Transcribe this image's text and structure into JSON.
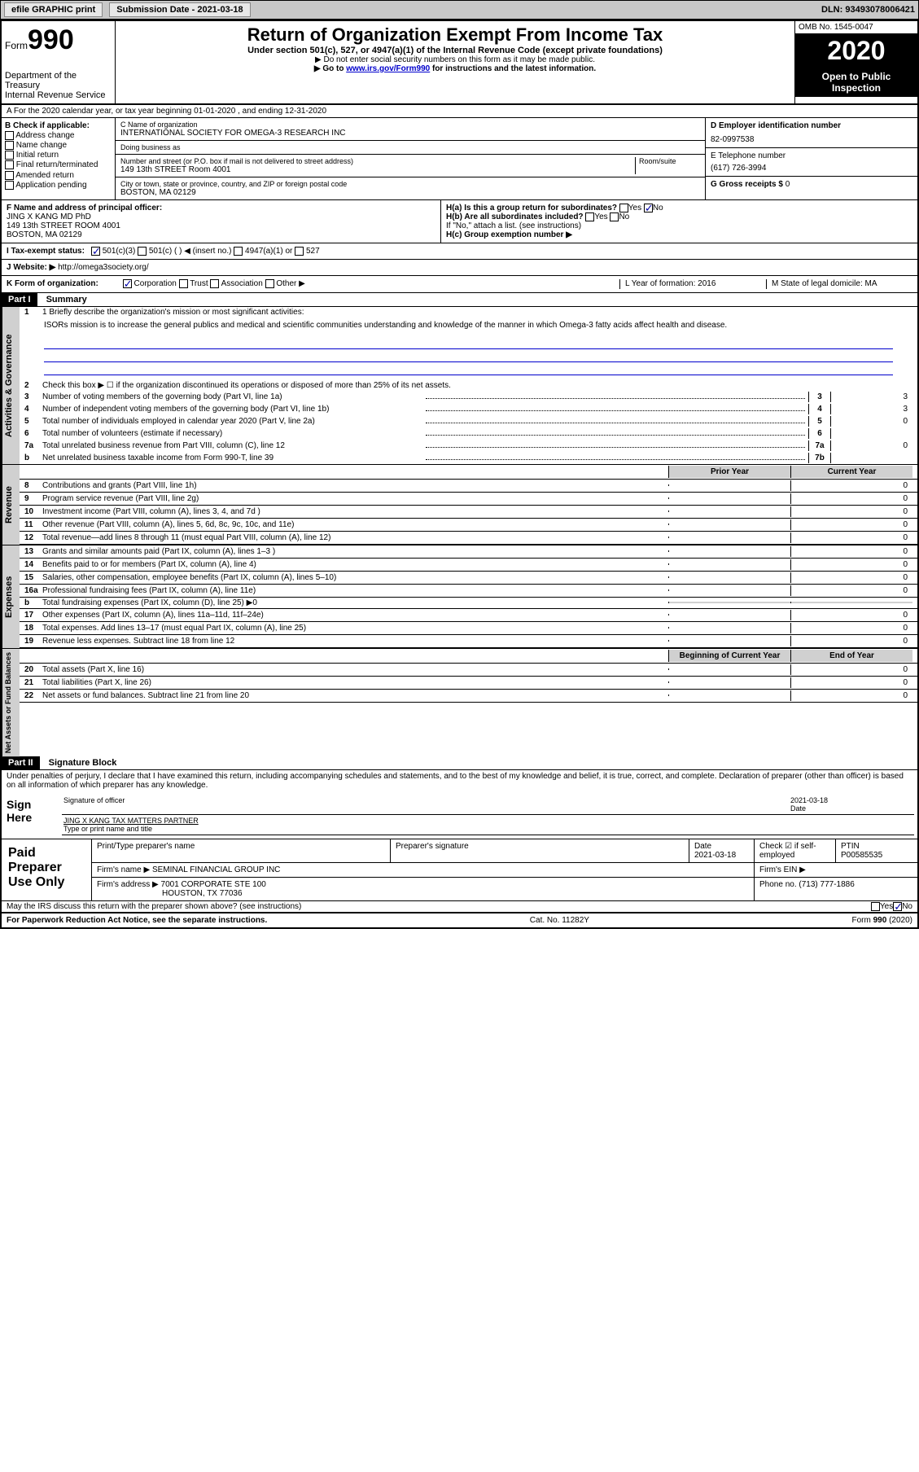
{
  "topbar": {
    "efile": "efile GRAPHIC print",
    "submission_label": "Submission Date",
    "submission_date": "2021-03-18",
    "dln_label": "DLN:",
    "dln": "93493078006421"
  },
  "header": {
    "form_word": "Form",
    "form_number": "990",
    "dept1": "Department of the Treasury",
    "dept2": "Internal Revenue Service",
    "title": "Return of Organization Exempt From Income Tax",
    "subtitle": "Under section 501(c), 527, or 4947(a)(1) of the Internal Revenue Code (except private foundations)",
    "note1": "▶ Do not enter social security numbers on this form as it may be made public.",
    "note2_pre": "▶ Go to ",
    "note2_link": "www.irs.gov/Form990",
    "note2_post": " for instructions and the latest information.",
    "omb": "OMB No. 1545-0047",
    "year": "2020",
    "open1": "Open to Public",
    "open2": "Inspection"
  },
  "lineA": "A For the 2020 calendar year, or tax year beginning 01-01-2020    , and ending 12-31-2020",
  "boxB": {
    "label": "B Check if applicable:",
    "items": [
      "Address change",
      "Name change",
      "Initial return",
      "Final return/terminated",
      "Amended return",
      "Application pending"
    ]
  },
  "boxC": {
    "name_lbl": "C Name of organization",
    "name": "INTERNATIONAL SOCIETY FOR OMEGA-3 RESEARCH INC",
    "dba_lbl": "Doing business as",
    "dba": "",
    "street_lbl": "Number and street (or P.O. box if mail is not delivered to street address)",
    "room_lbl": "Room/suite",
    "street": "149 13th STREET Room 4001",
    "city_lbl": "City or town, state or province, country, and ZIP or foreign postal code",
    "city": "BOSTON, MA  02129"
  },
  "boxD": {
    "lbl": "D Employer identification number",
    "val": "82-0997538"
  },
  "boxE": {
    "lbl": "E Telephone number",
    "val": "(617) 726-3994"
  },
  "boxG": {
    "lbl": "G Gross receipts $",
    "val": "0"
  },
  "boxF": {
    "lbl": "F  Name and address of principal officer:",
    "name": "JING X KANG MD PhD",
    "addr1": "149 13th STREET ROOM 4001",
    "addr2": "BOSTON, MA  02129"
  },
  "boxH": {
    "a": "H(a)  Is this a group return for subordinates?",
    "a_yes": "Yes",
    "a_no": "No",
    "b": "H(b)  Are all subordinates included?",
    "b_yes": "Yes",
    "b_no": "No",
    "b_note": "If \"No,\" attach a list. (see instructions)",
    "c": "H(c)  Group exemption number ▶"
  },
  "taxI": {
    "lbl": "I  Tax-exempt status:",
    "opts": [
      "501(c)(3)",
      "501(c) (  ) ◀ (insert no.)",
      "4947(a)(1) or",
      "527"
    ]
  },
  "rowJ": {
    "lbl": "J  Website: ▶",
    "val": "http://omega3society.org/"
  },
  "rowK": {
    "lbl": "K Form of organization:",
    "opts": [
      "Corporation",
      "Trust",
      "Association",
      "Other ▶"
    ],
    "L": "L Year of formation: 2016",
    "M": "M State of legal domicile: MA"
  },
  "partI": {
    "part": "Part I",
    "title": "Summary",
    "q1": "1  Briefly describe the organization's mission or most significant activities:",
    "mission": "ISORs mission is to increase the general publics and medical and scientific communities understanding and knowledge of the manner in which Omega-3 fatty acids affect health and disease.",
    "q2": "Check this box ▶ ☐  if the organization discontinued its operations or disposed of more than 25% of its net assets.",
    "sideA": "Activities & Governance",
    "sideR": "Revenue",
    "sideE": "Expenses",
    "sideN": "Net Assets or Fund Balances",
    "lines_ag": [
      {
        "n": "3",
        "t": "Number of voting members of the governing body (Part VI, line 1a)",
        "box": "3",
        "v": "3"
      },
      {
        "n": "4",
        "t": "Number of independent voting members of the governing body (Part VI, line 1b)",
        "box": "4",
        "v": "3"
      },
      {
        "n": "5",
        "t": "Total number of individuals employed in calendar year 2020 (Part V, line 2a)",
        "box": "5",
        "v": "0"
      },
      {
        "n": "6",
        "t": "Total number of volunteers (estimate if necessary)",
        "box": "6",
        "v": ""
      },
      {
        "n": "7a",
        "t": "Total unrelated business revenue from Part VIII, column (C), line 12",
        "box": "7a",
        "v": "0"
      },
      {
        "n": "b",
        "t": "Net unrelated business taxable income from Form 990-T, line 39",
        "box": "7b",
        "v": ""
      }
    ],
    "prior": "Prior Year",
    "curr": "Current Year",
    "lines_rev": [
      {
        "n": "8",
        "t": "Contributions and grants (Part VIII, line 1h)",
        "p": "",
        "c": "0"
      },
      {
        "n": "9",
        "t": "Program service revenue (Part VIII, line 2g)",
        "p": "",
        "c": "0"
      },
      {
        "n": "10",
        "t": "Investment income (Part VIII, column (A), lines 3, 4, and 7d )",
        "p": "",
        "c": "0"
      },
      {
        "n": "11",
        "t": "Other revenue (Part VIII, column (A), lines 5, 6d, 8c, 9c, 10c, and 11e)",
        "p": "",
        "c": "0"
      },
      {
        "n": "12",
        "t": "Total revenue—add lines 8 through 11 (must equal Part VIII, column (A), line 12)",
        "p": "",
        "c": "0"
      }
    ],
    "lines_exp": [
      {
        "n": "13",
        "t": "Grants and similar amounts paid (Part IX, column (A), lines 1–3 )",
        "p": "",
        "c": "0"
      },
      {
        "n": "14",
        "t": "Benefits paid to or for members (Part IX, column (A), line 4)",
        "p": "",
        "c": "0"
      },
      {
        "n": "15",
        "t": "Salaries, other compensation, employee benefits (Part IX, column (A), lines 5–10)",
        "p": "",
        "c": "0"
      },
      {
        "n": "16a",
        "t": "Professional fundraising fees (Part IX, column (A), line 11e)",
        "p": "",
        "c": "0"
      },
      {
        "n": "b",
        "t": "Total fundraising expenses (Part IX, column (D), line 25) ▶0",
        "p": "shade",
        "c": "shade"
      },
      {
        "n": "17",
        "t": "Other expenses (Part IX, column (A), lines 11a–11d, 11f–24e)",
        "p": "",
        "c": "0"
      },
      {
        "n": "18",
        "t": "Total expenses. Add lines 13–17 (must equal Part IX, column (A), line 25)",
        "p": "",
        "c": "0"
      },
      {
        "n": "19",
        "t": "Revenue less expenses. Subtract line 18 from line 12",
        "p": "",
        "c": "0"
      }
    ],
    "beg": "Beginning of Current Year",
    "end": "End of Year",
    "lines_na": [
      {
        "n": "20",
        "t": "Total assets (Part X, line 16)",
        "p": "",
        "c": "0"
      },
      {
        "n": "21",
        "t": "Total liabilities (Part X, line 26)",
        "p": "",
        "c": "0"
      },
      {
        "n": "22",
        "t": "Net assets or fund balances. Subtract line 21 from line 20",
        "p": "",
        "c": "0"
      }
    ]
  },
  "partII": {
    "part": "Part II",
    "title": "Signature Block",
    "decl": "Under penalties of perjury, I declare that I have examined this return, including accompanying schedules and statements, and to the best of my knowledge and belief, it is true, correct, and complete. Declaration of preparer (other than officer) is based on all information of which preparer has any knowledge.",
    "sign_here": "Sign Here",
    "sig_officer": "Signature of officer",
    "date_lbl": "Date",
    "date": "2021-03-18",
    "typed": "JING X KANG  TAX MATTERS PARTNER",
    "typed_lbl": "Type or print name and title",
    "paid": "Paid Preparer Use Only",
    "prep_name_lbl": "Print/Type preparer's name",
    "prep_sig_lbl": "Preparer's signature",
    "prep_date": "2021-03-18",
    "prep_check": "Check ☑ if self-employed",
    "ptin_lbl": "PTIN",
    "ptin": "P00585535",
    "firm_name_lbl": "Firm's name   ▶",
    "firm_name": "SEMINAL FINANCIAL GROUP INC",
    "firm_ein_lbl": "Firm's EIN ▶",
    "firm_addr_lbl": "Firm's address ▶",
    "firm_addr1": "7001 CORPORATE STE 100",
    "firm_addr2": "HOUSTON, TX  77036",
    "firm_phone_lbl": "Phone no.",
    "firm_phone": "(713) 777-1886",
    "discuss": "May the IRS discuss this return with the preparer shown above? (see instructions)",
    "yes": "Yes",
    "no": "No"
  },
  "footer": {
    "left": "For Paperwork Reduction Act Notice, see the separate instructions.",
    "mid": "Cat. No. 11282Y",
    "right": "Form 990 (2020)"
  }
}
